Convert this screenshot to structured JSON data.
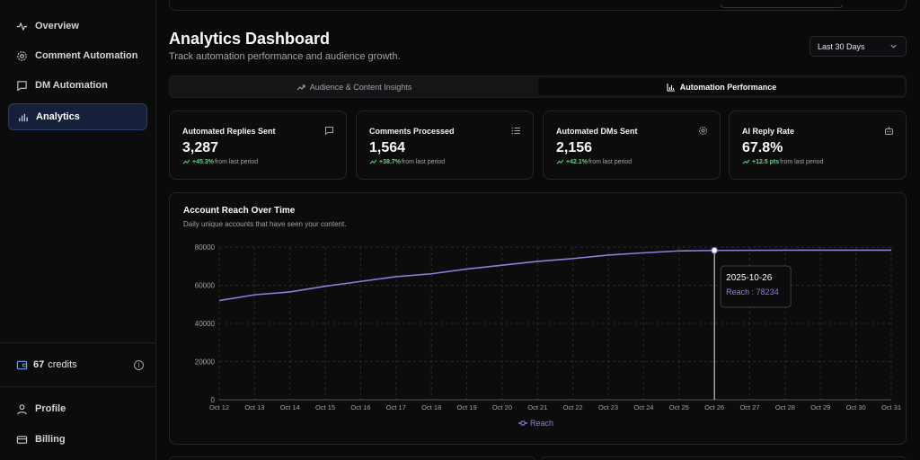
{
  "sidebar": {
    "items": [
      {
        "label": "Overview",
        "icon": "activity-icon"
      },
      {
        "label": "Comment Automation",
        "icon": "gear-icon"
      },
      {
        "label": "DM Automation",
        "icon": "message-icon"
      },
      {
        "label": "Analytics",
        "icon": "bar-chart-icon",
        "active": true
      }
    ],
    "credits": {
      "count": "67",
      "label": "credits"
    },
    "bottom_items": [
      {
        "label": "Profile",
        "icon": "user-icon"
      },
      {
        "label": "Billing",
        "icon": "card-icon"
      }
    ]
  },
  "header": {
    "title": "Analytics Dashboard",
    "subtitle": "Track automation performance and audience growth.",
    "range": "Last 30 Days"
  },
  "tabs": [
    {
      "label": "Audience & Content Insights",
      "active": false
    },
    {
      "label": "Automation Performance",
      "active": true
    }
  ],
  "stats": [
    {
      "title": "Automated Replies Sent",
      "value": "3,287",
      "delta": "+45.3%",
      "suffix": "from last period",
      "icon": "chat-icon"
    },
    {
      "title": "Comments Processed",
      "value": "1,564",
      "delta": "+38.7%",
      "suffix": "from last period",
      "icon": "list-icon"
    },
    {
      "title": "Automated DMs Sent",
      "value": "2,156",
      "delta": "+42.1%",
      "suffix": "from last period",
      "icon": "gear-icon"
    },
    {
      "title": "AI Reply Rate",
      "value": "67.8%",
      "delta": "+12.5 pts",
      "suffix": "from last period",
      "icon": "bot-icon"
    }
  ],
  "chart": {
    "title": "Account Reach Over Time",
    "subtitle": "Daily unique accounts that have seen your content.",
    "tooltip": {
      "date": "2025-10-26",
      "label": "Reach : 78234"
    },
    "accent": "#8b7fd8"
  },
  "chart_data": {
    "type": "line",
    "x": [
      "Oct 12",
      "Oct 13",
      "Oct 14",
      "Oct 15",
      "Oct 16",
      "Oct 17",
      "Oct 18",
      "Oct 19",
      "Oct 20",
      "Oct 21",
      "Oct 22",
      "Oct 23",
      "Oct 24",
      "Oct 25",
      "Oct 26",
      "Oct 27",
      "Oct 28",
      "Oct 29",
      "Oct 30",
      "Oct 31"
    ],
    "series": [
      {
        "name": "Reach",
        "values": [
          52000,
          55000,
          56500,
          59500,
          62000,
          64500,
          66000,
          68500,
          70500,
          72500,
          74000,
          75800,
          77000,
          78000,
          78234,
          78300,
          78350,
          78400,
          78400,
          78400
        ]
      }
    ],
    "yticks": [
      0,
      20000,
      40000,
      60000,
      80000
    ],
    "ylim": [
      0,
      80000
    ],
    "highlight_index": 14,
    "grid": true,
    "legend": "bottom"
  }
}
